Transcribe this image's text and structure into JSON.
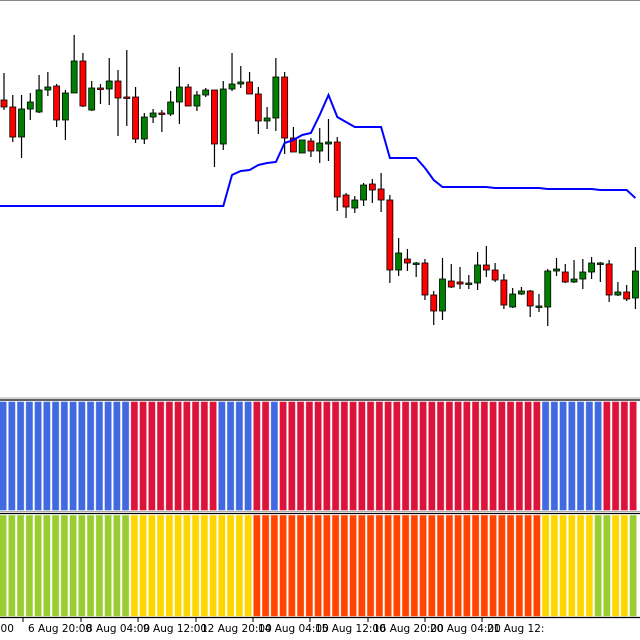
{
  "chart_data": {
    "type": "candlestick",
    "title": "",
    "colors": {
      "bull": "#008000",
      "bear": "#FF0000",
      "outline": "#000000",
      "overlay_line": "#0000FF"
    },
    "candles_ohlc": [
      [
        300,
        327,
        290,
        293
      ],
      [
        293,
        305,
        258,
        263
      ],
      [
        263,
        305,
        242,
        291
      ],
      [
        291,
        307,
        280,
        298
      ],
      [
        288,
        325,
        287,
        310
      ],
      [
        310,
        328,
        304,
        313
      ],
      [
        314,
        316,
        273,
        280
      ],
      [
        280,
        310,
        260,
        307
      ],
      [
        307,
        365,
        307,
        339
      ],
      [
        339,
        347,
        293,
        294
      ],
      [
        290,
        319,
        289,
        312
      ],
      [
        312,
        316,
        296,
        311
      ],
      [
        311,
        342,
        295,
        319
      ],
      [
        319,
        330,
        264,
        302
      ],
      [
        303,
        350,
        274,
        302
      ],
      [
        303,
        313,
        257,
        261
      ],
      [
        261,
        287,
        256,
        283
      ],
      [
        283,
        291,
        277,
        287
      ],
      [
        287,
        290,
        268,
        286
      ],
      [
        286,
        309,
        284,
        298
      ],
      [
        298,
        333,
        276,
        313
      ],
      [
        313,
        316,
        294,
        294
      ],
      [
        294,
        309,
        289,
        305
      ],
      [
        305,
        312,
        303,
        310
      ],
      [
        310,
        310,
        233,
        256
      ],
      [
        256,
        319,
        250,
        311
      ],
      [
        311,
        347,
        309,
        316
      ],
      [
        316,
        334,
        312,
        318
      ],
      [
        318,
        328,
        306,
        306
      ],
      [
        306,
        313,
        266,
        279
      ],
      [
        279,
        293,
        271,
        282
      ],
      [
        282,
        342,
        269,
        323
      ],
      [
        323,
        328,
        246,
        262
      ],
      [
        262,
        273,
        248,
        248
      ],
      [
        247,
        260,
        247,
        260
      ],
      [
        259,
        262,
        243,
        249
      ],
      [
        249,
        272,
        237,
        257
      ],
      [
        256,
        281,
        239,
        258
      ],
      [
        258,
        263,
        189,
        203
      ],
      [
        205,
        207,
        182,
        193
      ],
      [
        192,
        204,
        187,
        200
      ],
      [
        200,
        217,
        194,
        215
      ],
      [
        216,
        221,
        197,
        210
      ],
      [
        211,
        227,
        188,
        200
      ],
      [
        200,
        205,
        117,
        130
      ],
      [
        130,
        162,
        124,
        147
      ],
      [
        141,
        151,
        129,
        137
      ],
      [
        137,
        138,
        123,
        137
      ],
      [
        137,
        141,
        100,
        105
      ],
      [
        105,
        109,
        75,
        89
      ],
      [
        89,
        142,
        80,
        121
      ],
      [
        119,
        136,
        112,
        113
      ],
      [
        118,
        133,
        111,
        116
      ],
      [
        117,
        125,
        111,
        117
      ],
      [
        117,
        148,
        110,
        135
      ],
      [
        135,
        154,
        123,
        130
      ],
      [
        130,
        137,
        118,
        120
      ],
      [
        120,
        126,
        91,
        95
      ],
      [
        93,
        112,
        92,
        106
      ],
      [
        106,
        113,
        105,
        109
      ],
      [
        109,
        110,
        83,
        94
      ],
      [
        94,
        106,
        88,
        94
      ],
      [
        93,
        131,
        74,
        129
      ],
      [
        129,
        142,
        124,
        131
      ],
      [
        128,
        136,
        117,
        118
      ],
      [
        118,
        140,
        117,
        121
      ],
      [
        121,
        141,
        111,
        128
      ],
      [
        128,
        143,
        121,
        137
      ],
      [
        137,
        138,
        118,
        137
      ],
      [
        136,
        140,
        98,
        105
      ],
      [
        105,
        118,
        104,
        108
      ],
      [
        108,
        115,
        99,
        101
      ],
      [
        102,
        153,
        91,
        129
      ]
    ],
    "overlay_line_values": [
      194,
      194,
      194,
      194,
      194,
      194,
      194,
      194,
      194,
      194,
      194,
      194,
      194,
      194,
      194,
      194,
      194,
      194,
      194,
      194,
      194,
      194,
      194,
      194,
      194,
      194,
      225,
      229,
      230,
      235,
      237,
      238,
      257,
      260,
      265,
      267,
      285,
      305,
      283,
      278,
      273,
      273,
      273,
      273,
      242,
      242,
      242,
      242,
      232,
      220,
      213,
      213,
      213,
      213,
      213,
      213,
      212,
      212,
      212,
      212,
      212,
      212,
      211,
      211,
      211,
      211,
      211,
      211,
      210,
      210,
      210,
      210,
      202
    ],
    "histogram_1": {
      "palette": {
        "blue": "#4169E1",
        "red": "#DC143C"
      },
      "states": [
        "blue",
        "blue",
        "blue",
        "blue",
        "blue",
        "blue",
        "blue",
        "blue",
        "blue",
        "blue",
        "blue",
        "blue",
        "blue",
        "blue",
        "blue",
        "red",
        "red",
        "red",
        "red",
        "red",
        "red",
        "red",
        "red",
        "red",
        "red",
        "blue",
        "blue",
        "blue",
        "blue",
        "red",
        "red",
        "blue",
        "red",
        "red",
        "red",
        "red",
        "red",
        "red",
        "red",
        "red",
        "red",
        "red",
        "red",
        "red",
        "red",
        "red",
        "red",
        "red",
        "red",
        "red",
        "red",
        "red",
        "red",
        "red",
        "red",
        "red",
        "red",
        "red",
        "red",
        "red",
        "red",
        "red",
        "blue",
        "blue",
        "blue",
        "blue",
        "blue",
        "blue",
        "blue",
        "red",
        "red",
        "red",
        "red"
      ]
    },
    "histogram_2": {
      "palette": {
        "green": "#9ACD32",
        "yellow": "#FFD700",
        "orange": "#FF4500"
      },
      "states": [
        "green",
        "green",
        "green",
        "green",
        "green",
        "green",
        "green",
        "green",
        "green",
        "green",
        "green",
        "green",
        "green",
        "green",
        "green",
        "yellow",
        "yellow",
        "yellow",
        "yellow",
        "yellow",
        "yellow",
        "yellow",
        "yellow",
        "yellow",
        "yellow",
        "yellow",
        "yellow",
        "yellow",
        "yellow",
        "orange",
        "orange",
        "orange",
        "orange",
        "orange",
        "orange",
        "orange",
        "orange",
        "orange",
        "orange",
        "orange",
        "orange",
        "orange",
        "orange",
        "orange",
        "orange",
        "orange",
        "orange",
        "orange",
        "orange",
        "orange",
        "orange",
        "orange",
        "orange",
        "orange",
        "orange",
        "orange",
        "orange",
        "orange",
        "orange",
        "orange",
        "orange",
        "orange",
        "yellow",
        "yellow",
        "yellow",
        "yellow",
        "yellow",
        "yellow",
        "green",
        "green",
        "yellow",
        "yellow",
        "green"
      ]
    },
    "x_tick_labels": [
      ":00",
      "6 Aug 20:00",
      "8 Aug 04:00",
      "9 Aug 12:00",
      "12 Aug 20:00",
      "14 Aug 04:00",
      "15 Aug 12:00",
      "16 Aug 20:00",
      "20 Aug 04:00",
      "21 Aug 12:"
    ],
    "grid": false,
    "legend": "none"
  }
}
